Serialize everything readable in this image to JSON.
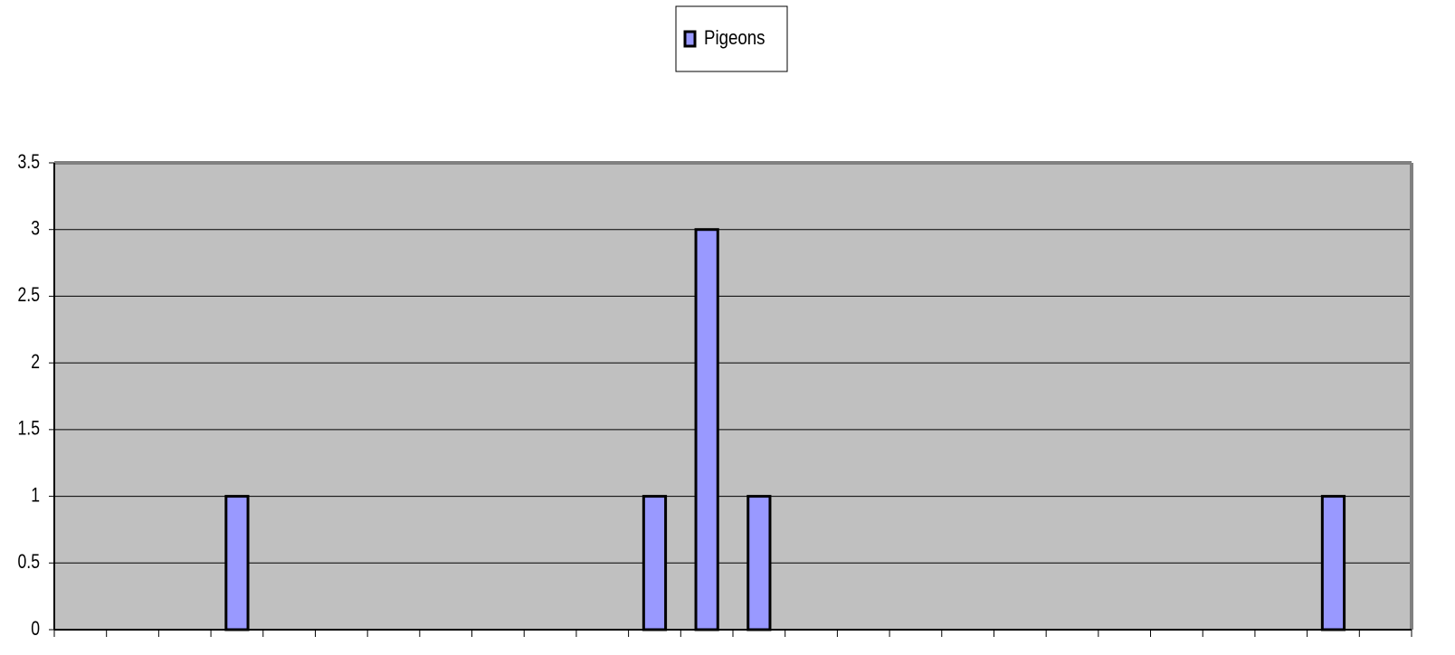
{
  "chart_data": {
    "type": "bar",
    "categories": [
      null,
      null,
      null,
      null,
      null,
      null,
      null,
      null,
      null,
      null,
      null,
      null,
      null,
      null,
      null,
      null,
      null,
      null,
      null,
      null,
      null,
      null,
      null,
      null,
      null,
      null
    ],
    "series": [
      {
        "name": "Pigeons",
        "color": "#9999ff",
        "values": [
          0,
          0,
          0,
          1,
          0,
          0,
          0,
          0,
          0,
          0,
          0,
          1,
          3,
          1,
          0,
          0,
          0,
          0,
          0,
          0,
          0,
          0,
          0,
          0,
          1,
          0
        ]
      }
    ],
    "ylim": [
      0,
      3.5
    ],
    "yticks": [
      0,
      0.5,
      1,
      1.5,
      2,
      2.5,
      3,
      3.5
    ],
    "grid": true,
    "legend": "top"
  }
}
